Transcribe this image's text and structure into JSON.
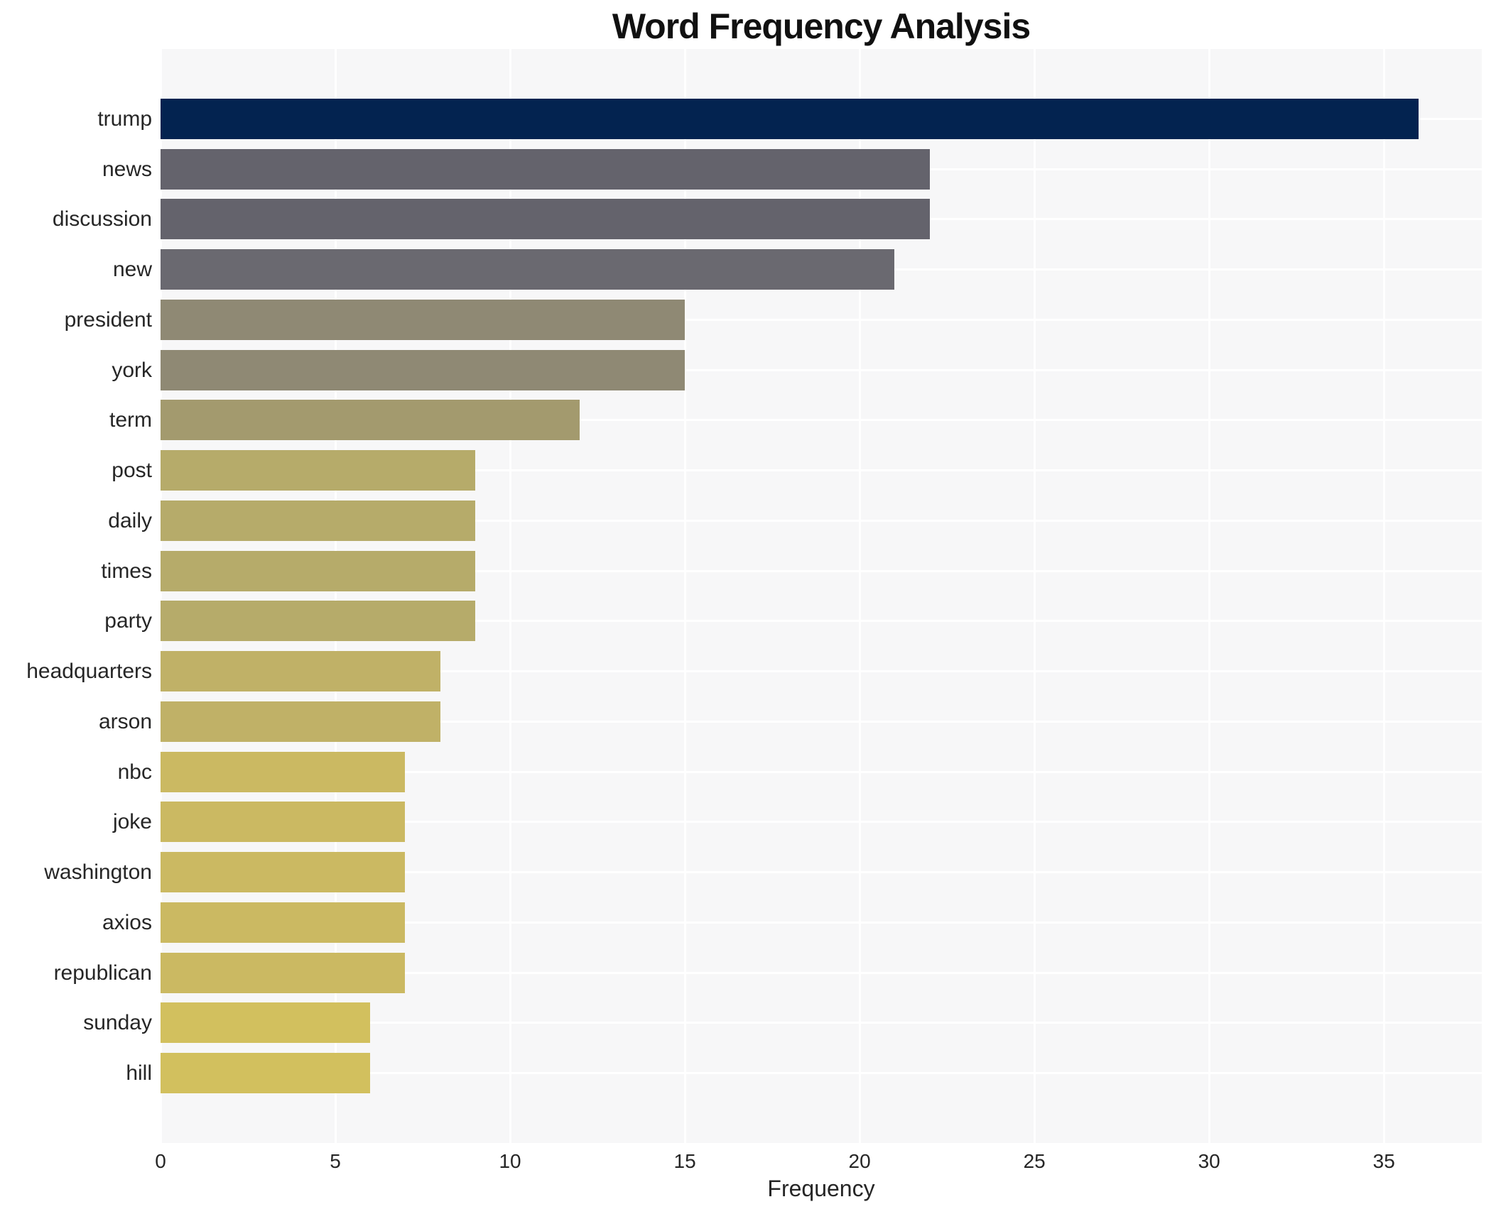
{
  "page": {
    "background_color": "#ffffff"
  },
  "chart_data": {
    "type": "bar",
    "orientation": "horizontal",
    "title": "Word Frequency Analysis",
    "xlabel": "Frequency",
    "ylabel": "",
    "categories": [
      "trump",
      "news",
      "discussion",
      "new",
      "president",
      "york",
      "term",
      "post",
      "daily",
      "times",
      "party",
      "headquarters",
      "arson",
      "nbc",
      "joke",
      "washington",
      "axios",
      "republican",
      "sunday",
      "hill"
    ],
    "values": [
      36,
      22,
      22,
      21,
      15,
      15,
      12,
      9,
      9,
      9,
      9,
      8,
      8,
      7,
      7,
      7,
      7,
      7,
      6,
      6
    ],
    "bar_colors": [
      "#032350",
      "#64636c",
      "#64636c",
      "#6a6970",
      "#8f8974",
      "#8f8974",
      "#a39a6e",
      "#b6ab6a",
      "#b6ab6a",
      "#b6ab6a",
      "#b6ab6a",
      "#c0b167",
      "#c0b167",
      "#cbb962",
      "#cbb962",
      "#cbb962",
      "#cbb962",
      "#cbb962",
      "#d2c05e",
      "#d2c05e"
    ],
    "xticks": [
      0,
      5,
      10,
      15,
      20,
      25,
      30,
      35
    ],
    "xlim": [
      0,
      37.8
    ],
    "grid": true,
    "legend": "none",
    "plot_background": "#f7f7f8",
    "gridline_color": "#ffffff"
  }
}
